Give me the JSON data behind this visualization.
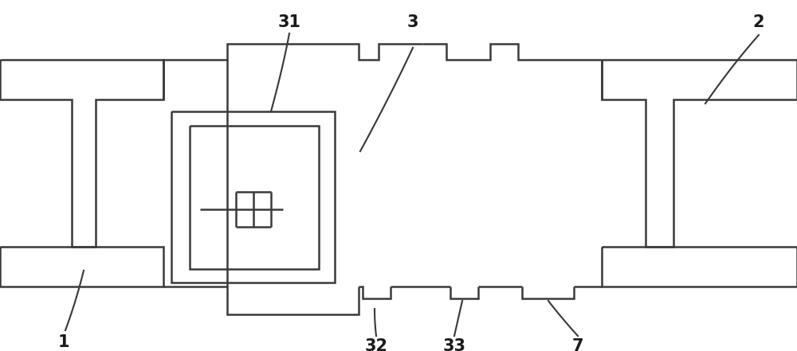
{
  "background_color": "#ffffff",
  "line_color": "#3a3a3a",
  "line_width": 1.8,
  "label_fontsize": 15,
  "label_fontweight": "bold",
  "label_color": "#1a1a1a"
}
